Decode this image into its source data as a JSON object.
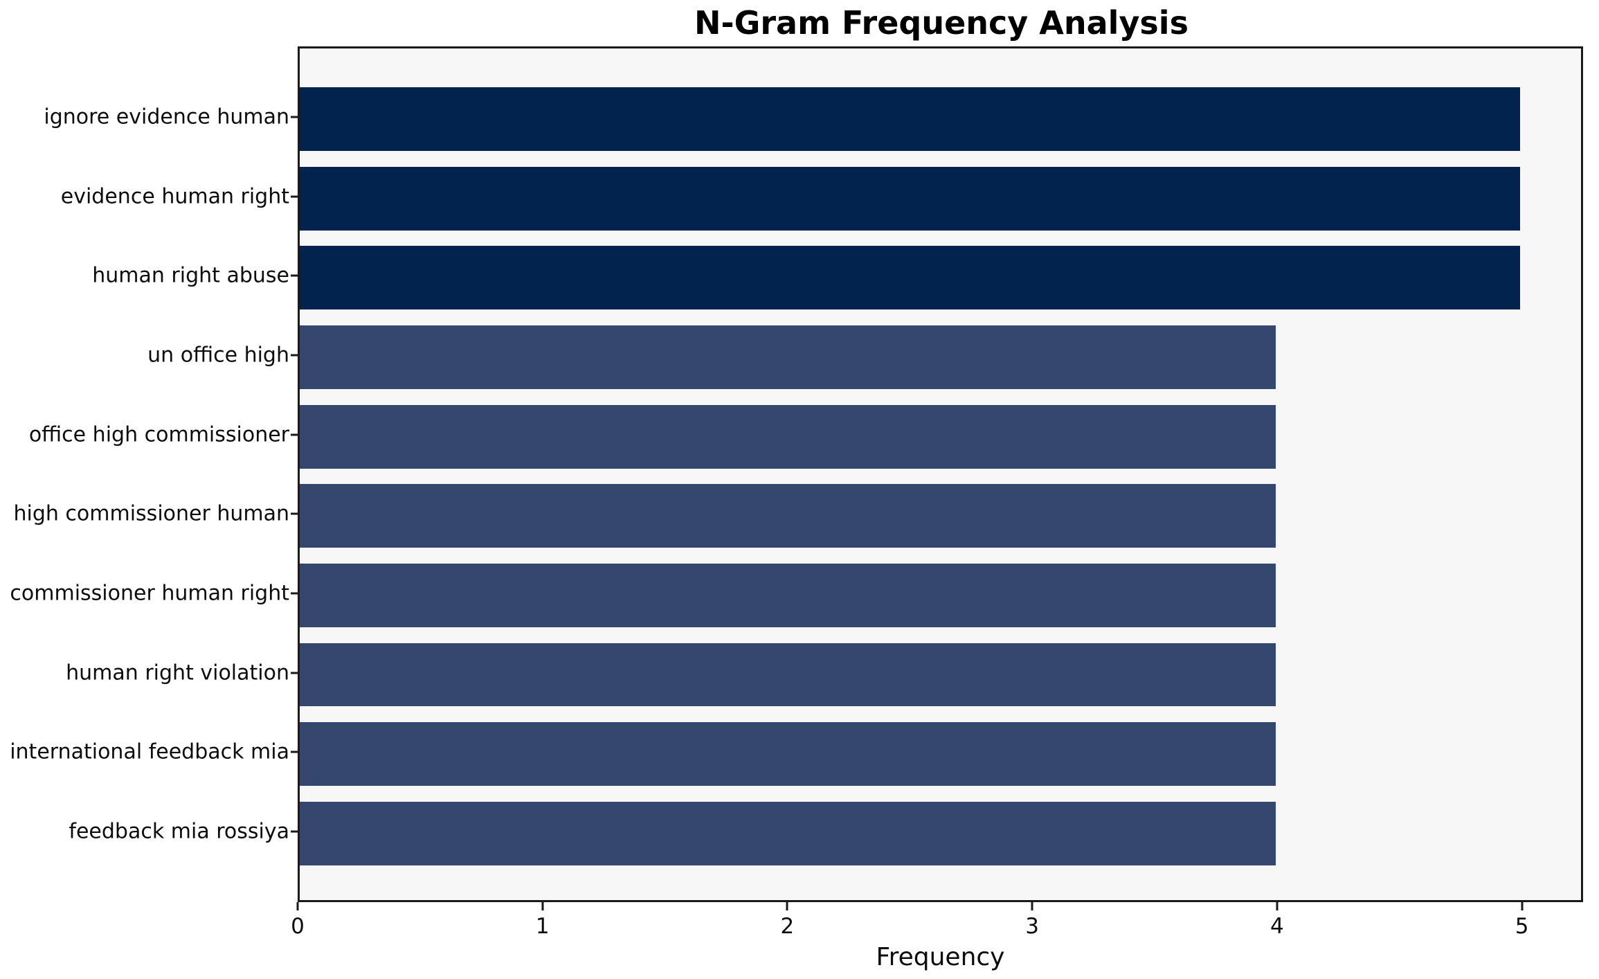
{
  "chart_data": {
    "type": "bar",
    "orientation": "horizontal",
    "title": "N-Gram Frequency Analysis",
    "xlabel": "Frequency",
    "ylabel": "",
    "categories": [
      "ignore evidence human",
      "evidence human right",
      "human right abuse",
      "un office high",
      "office high commissioner",
      "high commissioner human",
      "commissioner human right",
      "human right violation",
      "international feedback mia",
      "feedback mia rossiya"
    ],
    "values": [
      5,
      5,
      5,
      4,
      4,
      4,
      4,
      4,
      4,
      4
    ],
    "bar_colors": [
      "#02234d",
      "#02234d",
      "#02234d",
      "#36476f",
      "#36476f",
      "#36476f",
      "#36476f",
      "#36476f",
      "#36476f",
      "#36476f"
    ],
    "xlim": [
      0,
      5.25
    ],
    "xticks": [
      "0",
      "1",
      "2",
      "3",
      "4",
      "5"
    ],
    "grid": false,
    "legend": null,
    "plot_background": "#f7f7f7",
    "figure_background": "#ffffff",
    "spine_color": "#1a1a1a"
  }
}
